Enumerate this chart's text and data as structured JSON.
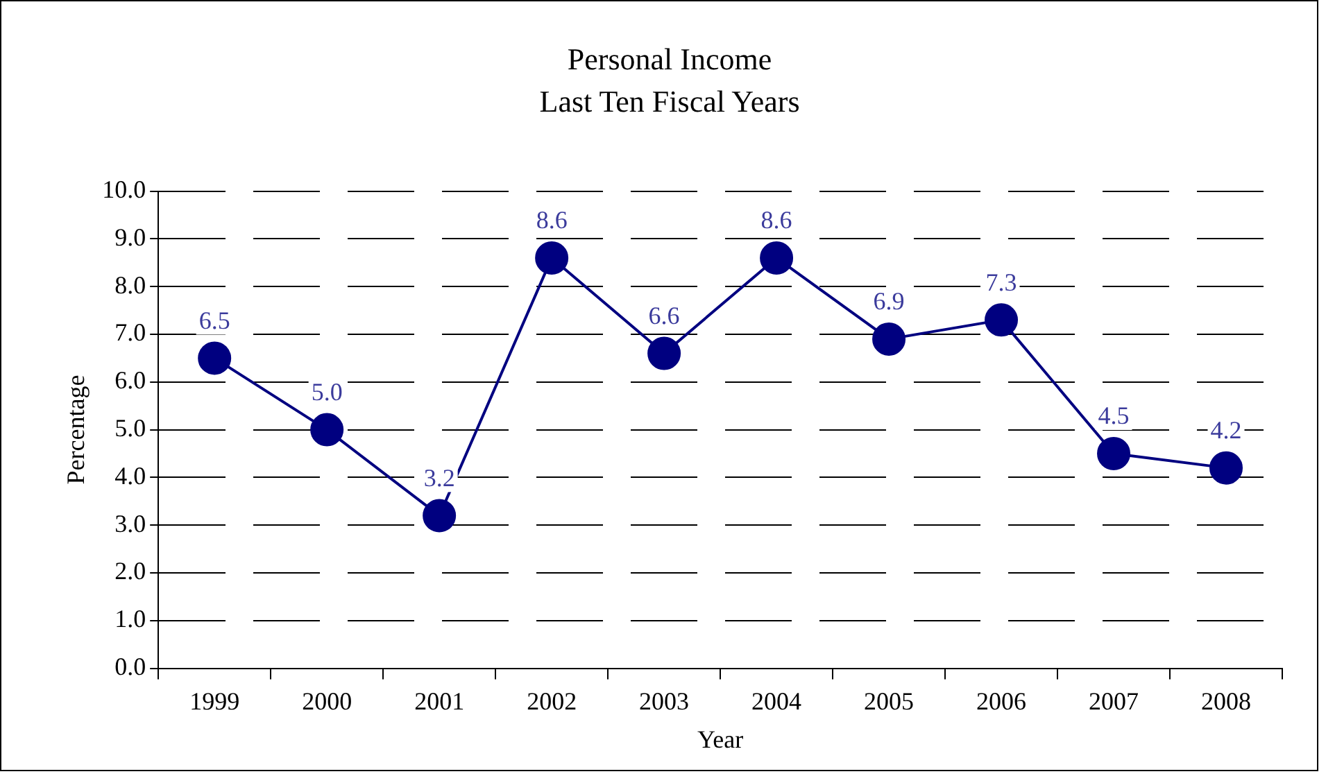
{
  "chart_data": {
    "type": "line",
    "title": "Personal Income",
    "subtitle": "Last Ten Fiscal Years",
    "xlabel": "Year",
    "ylabel": "Percentage",
    "categories": [
      "1999",
      "2000",
      "2001",
      "2002",
      "2003",
      "2004",
      "2005",
      "2006",
      "2007",
      "2008"
    ],
    "series": [
      {
        "color": "#000080",
        "values": [
          6.5,
          5.0,
          3.2,
          8.6,
          6.6,
          8.6,
          6.9,
          7.3,
          4.5,
          4.2
        ],
        "value_labels": [
          "6.5",
          "5.0",
          "3.2",
          "8.6",
          "6.6",
          "8.6",
          "6.9",
          "7.3",
          "4.5",
          "4.2"
        ]
      }
    ],
    "ylim": [
      0,
      10
    ],
    "yticks": [
      {
        "value": 0,
        "label": "0.0"
      },
      {
        "value": 1,
        "label": "1.0"
      },
      {
        "value": 2,
        "label": "2.0"
      },
      {
        "value": 3,
        "label": "3.0"
      },
      {
        "value": 4,
        "label": "4.0"
      },
      {
        "value": 5,
        "label": "5.0"
      },
      {
        "value": 6,
        "label": "6.0"
      },
      {
        "value": 7,
        "label": "7.0"
      },
      {
        "value": 8,
        "label": "8.0"
      },
      {
        "value": 9,
        "label": "9.0"
      },
      {
        "value": 10,
        "label": "10.0"
      }
    ],
    "grid": "y",
    "line_style": "solid",
    "marker": "circle",
    "legend": false
  }
}
